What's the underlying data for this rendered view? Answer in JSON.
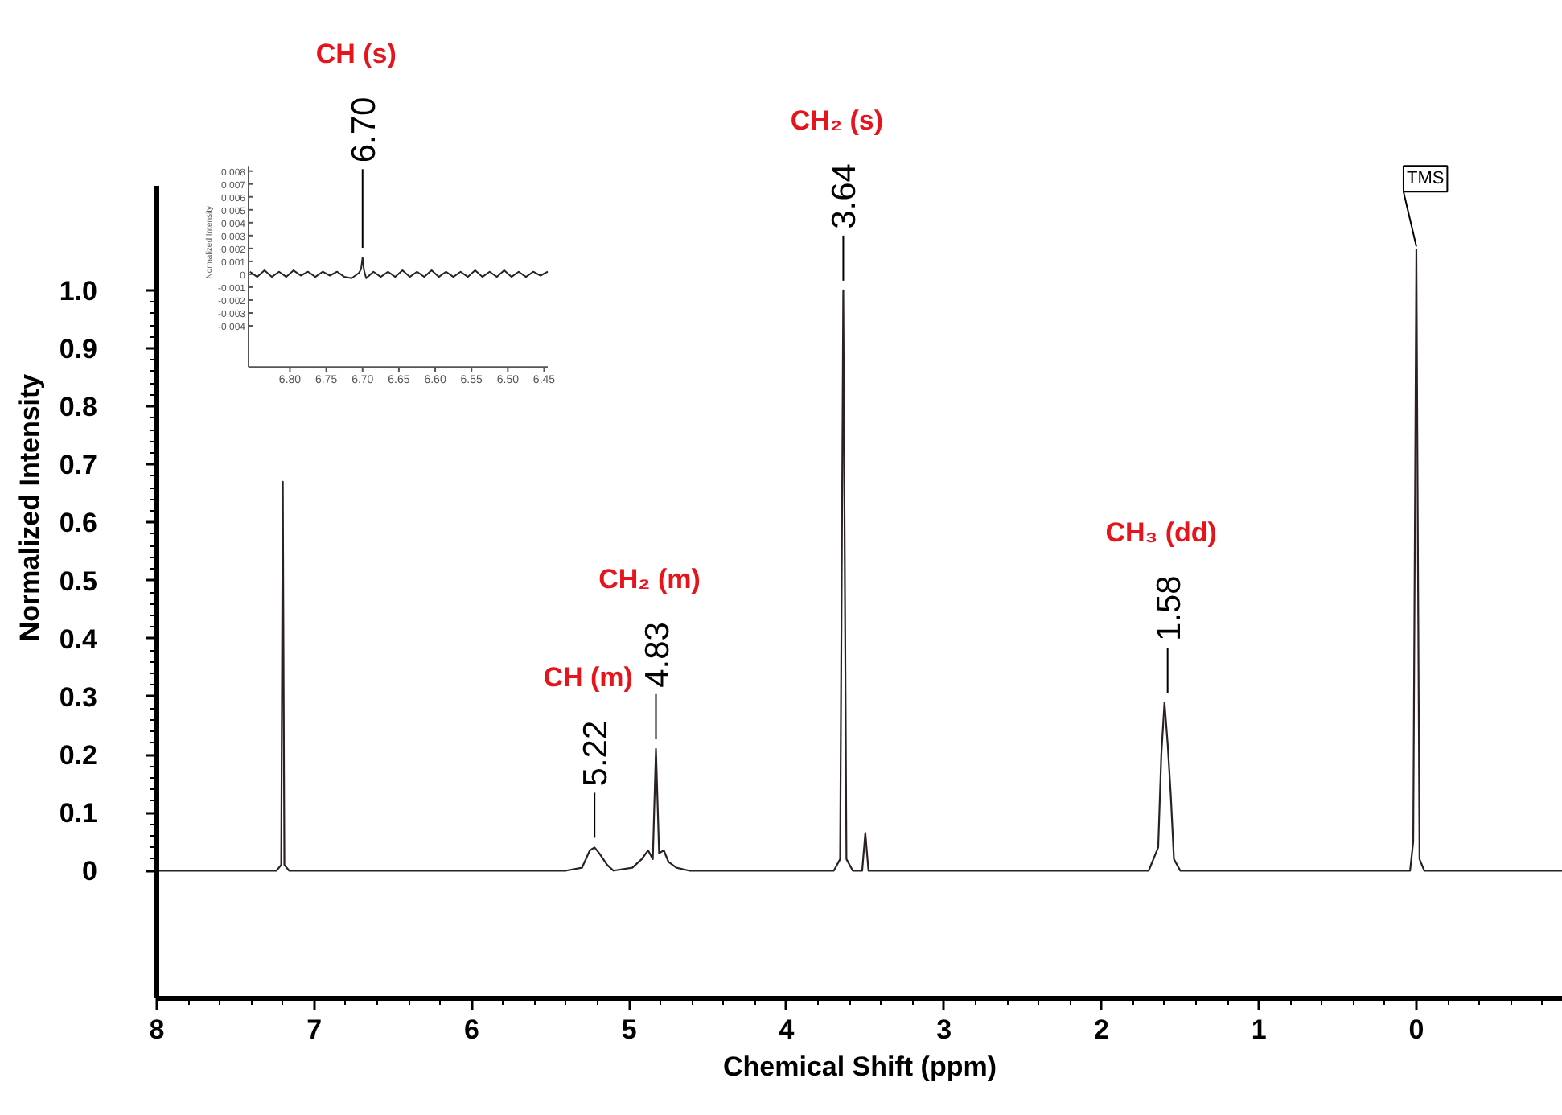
{
  "chart_data": [
    {
      "type": "line",
      "xlabel": "Chemical Shift (ppm)",
      "ylabel": "Normalized Intensity",
      "x": [
        8.0,
        7.24,
        7.21,
        7.2,
        7.19,
        7.16,
        5.4,
        5.3,
        5.25,
        5.22,
        5.19,
        5.14,
        5.1,
        4.98,
        4.92,
        4.88,
        4.85,
        4.83,
        4.81,
        4.78,
        4.75,
        4.7,
        4.62,
        3.7,
        3.66,
        3.64,
        3.62,
        3.58,
        3.52,
        3.5,
        3.48,
        1.7,
        1.64,
        1.62,
        1.6,
        1.58,
        1.56,
        1.54,
        1.5,
        0.04,
        0.02,
        0.0,
        -0.02,
        -0.05,
        -0.93
      ],
      "series": [
        {
          "color": "#2b2121",
          "values": [
            0,
            0,
            0.01,
            0.67,
            0.01,
            0,
            0,
            0.005,
            0.035,
            0.04,
            0.03,
            0.01,
            0,
            0.005,
            0.02,
            0.035,
            0.02,
            0.21,
            0.03,
            0.035,
            0.015,
            0.005,
            0,
            0,
            0.02,
            1.0,
            0.02,
            0,
            0,
            0.065,
            0,
            0,
            0.04,
            0.2,
            0.29,
            0.22,
            0.13,
            0.02,
            0,
            0,
            0.05,
            1.07,
            0.02,
            0,
            0
          ]
        }
      ],
      "xlim": [
        8,
        -0.93
      ],
      "xticks": [
        8,
        7,
        6,
        5,
        4,
        3,
        2,
        1,
        0
      ],
      "ylim": [
        -0.22,
        1.18
      ],
      "yticks": [
        {
          "value": 0,
          "label": "0"
        },
        0.1,
        0.2,
        0.3,
        0.4,
        0.5,
        0.6,
        0.7,
        0.8,
        0.9,
        {
          "value": 1.0,
          "label": "1.0"
        }
      ],
      "annotations": [
        {
          "text": "5.22",
          "x": 5.22,
          "y": 0.04
        },
        "CH (m)",
        {
          "text": "4.83",
          "x": 4.83,
          "y": 0.21
        },
        "CH₂ (m)",
        {
          "text": "3.64",
          "x": 3.64,
          "y": 1.0
        },
        "CH₂ (s)",
        {
          "text": "1.58",
          "x": 1.58,
          "y": 0.29
        },
        "CH₃ (dd)",
        {
          "text": "TMS",
          "x": 0.0,
          "y": 1.07
        }
      ]
    },
    {
      "type": "line",
      "ylabel": "Normalized Intensity",
      "x": [
        6.855,
        6.845,
        6.835,
        6.825,
        6.815,
        6.805,
        6.795,
        6.785,
        6.775,
        6.765,
        6.755,
        6.745,
        6.735,
        6.725,
        6.715,
        6.705,
        6.702,
        6.7,
        6.698,
        6.695,
        6.685,
        6.675,
        6.665,
        6.655,
        6.645,
        6.635,
        6.625,
        6.615,
        6.605,
        6.595,
        6.585,
        6.575,
        6.565,
        6.555,
        6.545,
        6.535,
        6.525,
        6.515,
        6.505,
        6.495,
        6.485,
        6.475,
        6.465,
        6.455,
        6.445
      ],
      "series": [
        {
          "color": "#2b2121",
          "values": [
            0.0002,
            -0.0002,
            0.0003,
            -0.0002,
            0.0002,
            -0.0002,
            0.0003,
            -0.0001,
            0.0002,
            -0.0002,
            0.0002,
            -0.0001,
            0.0002,
            -0.0002,
            -0.0003,
            0.0001,
            0.0004,
            0.0013,
            0.0003,
            -0.0003,
            0.0002,
            -0.0002,
            0.0002,
            -0.0002,
            0.0003,
            -0.0002,
            0.0002,
            -0.0002,
            0.0003,
            -0.0002,
            0.0002,
            -0.0002,
            0.0002,
            -0.0002,
            0.0003,
            -0.0002,
            0.0002,
            -0.0002,
            0.0003,
            -0.0002,
            0.0002,
            -0.0002,
            0.0002,
            -0.0001,
            0.0002
          ]
        }
      ],
      "xlim": [
        6.857,
        6.445
      ],
      "xticks": [
        {
          "value": 6.8,
          "label": "6.80"
        },
        6.75,
        {
          "value": 6.7,
          "label": "6.70"
        },
        6.65,
        {
          "value": 6.6,
          "label": "6.60"
        },
        6.55,
        {
          "value": 6.5,
          "label": "6.50"
        },
        6.45
      ],
      "ylim": [
        -0.0072,
        0.0084
      ],
      "yticks": [
        0.008,
        0.007,
        0.006,
        0.005,
        0.004,
        0.003,
        0.002,
        0.001,
        0,
        -0.001,
        -0.002,
        -0.003,
        -0.004
      ],
      "annotations": [
        {
          "text": "6.70",
          "x": 6.7,
          "y": 0.0013
        },
        "CH (s)"
      ]
    }
  ]
}
